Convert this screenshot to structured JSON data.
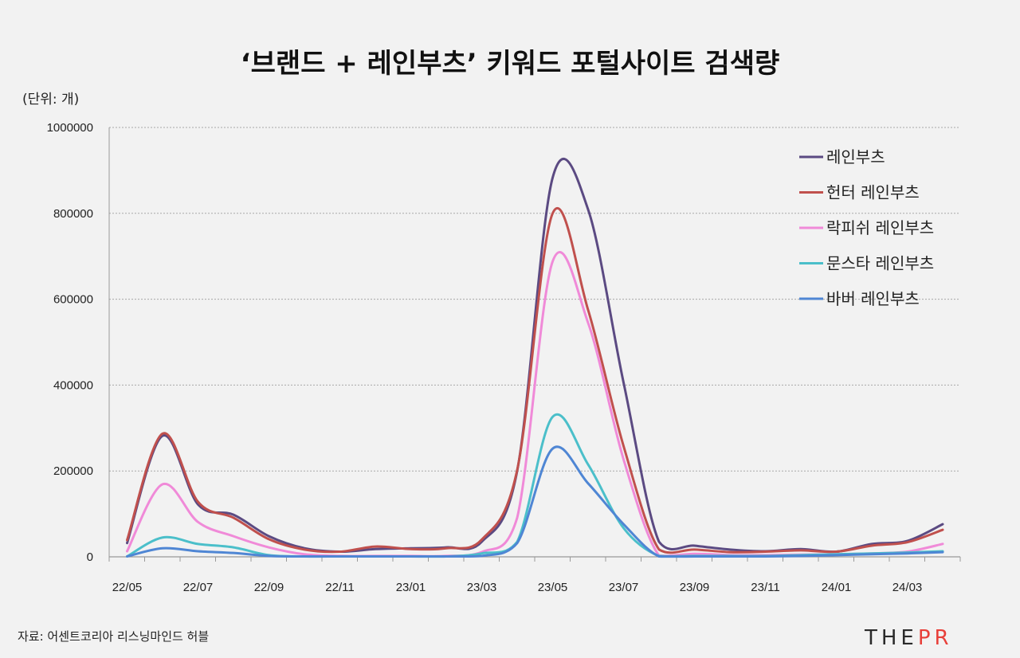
{
  "title": "‘브랜드 + 레인부츠’ 키워드 포털사이트 검색량",
  "unit_label": "(단위: 개)",
  "source": "자료: 어센트코리아 리스닝마인드 허블",
  "logo": {
    "part1": "THE",
    "part2": "PR",
    "colors": [
      "#2a2a2a",
      "#e8403a"
    ]
  },
  "chart_data": {
    "type": "line",
    "title": "‘브랜드 + 레인부츠’ 키워드 포털사이트 검색량",
    "xlabel": "",
    "ylabel": "(단위: 개)",
    "ylim": [
      0,
      1000000
    ],
    "yticks": [
      "0",
      "200000",
      "400000",
      "600000",
      "800000",
      "1000000"
    ],
    "grid": "horizontal dotted",
    "legend_position": "right",
    "x": [
      "22/05",
      "22/06",
      "22/07",
      "22/08",
      "22/09",
      "22/10",
      "22/11",
      "22/12",
      "23/01",
      "23/02",
      "23/03",
      "23/04",
      "23/05",
      "23/06",
      "23/07",
      "23/08",
      "23/09",
      "23/10",
      "23/11",
      "23/12",
      "24/01",
      "24/02",
      "24/03",
      "24/04"
    ],
    "xtick_labels": [
      "22/05",
      "22/07",
      "22/09",
      "22/11",
      "23/01",
      "23/03",
      "23/05",
      "23/07",
      "23/09",
      "23/11",
      "24/01",
      "24/03"
    ],
    "series": [
      {
        "name": "레인부츠",
        "color": "#5b4a82",
        "values": [
          32000,
          282000,
          122000,
          98000,
          48000,
          20000,
          12000,
          18000,
          20000,
          22000,
          35000,
          200000,
          883000,
          809000,
          406000,
          35000,
          26000,
          17000,
          13000,
          18000,
          12000,
          30000,
          37000,
          76000
        ]
      },
      {
        "name": "헌터 레인부츠",
        "color": "#c0504d",
        "values": [
          39000,
          287000,
          128000,
          91000,
          41000,
          17000,
          12000,
          24000,
          18000,
          20000,
          40000,
          202000,
          800000,
          575000,
          258000,
          17000,
          17000,
          11000,
          12000,
          15000,
          12000,
          26000,
          34000,
          63000
        ]
      },
      {
        "name": "락피쉬 레인부츠",
        "color": "#f08ad8",
        "values": [
          13000,
          169000,
          81000,
          48000,
          22000,
          6000,
          2000,
          2000,
          2000,
          2000,
          11000,
          91000,
          688000,
          545000,
          227000,
          3000,
          7000,
          4000,
          4000,
          5000,
          6000,
          8000,
          12000,
          30000
        ]
      },
      {
        "name": "문스타 레인부츠",
        "color": "#4bbfca",
        "values": [
          1000,
          45000,
          30000,
          22000,
          4000,
          1000,
          1000,
          1000,
          1000,
          1000,
          8000,
          35000,
          326000,
          215000,
          67000,
          2000,
          2000,
          2000,
          2000,
          4000,
          6000,
          8000,
          10000,
          13000
        ]
      },
      {
        "name": "바버 레인부츠",
        "color": "#4f86d4",
        "values": [
          1000,
          20000,
          13000,
          9000,
          2000,
          1000,
          1000,
          1000,
          1000,
          1000,
          2000,
          32000,
          252000,
          171000,
          76000,
          1000,
          1000,
          1000,
          1000,
          2000,
          4000,
          6000,
          8000,
          11000
        ]
      }
    ]
  }
}
